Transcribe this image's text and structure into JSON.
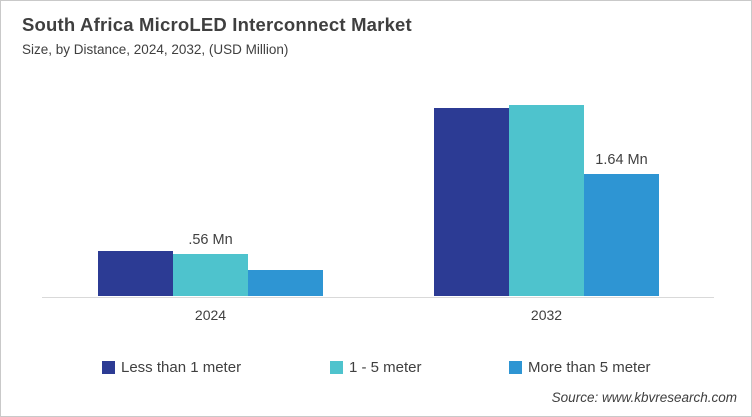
{
  "header": {
    "title": "South Africa MicroLED Interconnect Market",
    "subtitle": "Size, by Distance, 2024, 2032, (USD Million)"
  },
  "source": "Source: www.kbvresearch.com",
  "colors": {
    "less_than_1_meter": "#2c3b94",
    "one_to_5_meter": "#4ec3cd",
    "more_than_5_meter": "#2e95d3",
    "axis_line": "#d9d9d9",
    "text": "#3f3f3f"
  },
  "chart_data": {
    "type": "bar",
    "categories": [
      "2024",
      "2032"
    ],
    "series": [
      {
        "name": "Less than 1 meter",
        "color": "#2c3b94",
        "values": [
          0.6,
          2.52
        ]
      },
      {
        "name": "1 - 5 meter",
        "color": "#4ec3cd",
        "values": [
          0.56,
          2.56
        ]
      },
      {
        "name": "More than 5 meter",
        "color": "#2e95d3",
        "values": [
          0.35,
          1.64
        ]
      }
    ],
    "unit": "Mn",
    "data_labels": [
      {
        "category": "2024",
        "series": "1 - 5 meter",
        "text": ".56 Mn"
      },
      {
        "category": "2032",
        "series": "More than 5 meter",
        "text": "1.64 Mn"
      }
    ],
    "ylim": [
      0,
      2.8
    ],
    "xlabel": "",
    "ylabel": "",
    "grid": false,
    "y_axis_visible": false,
    "legend_position": "bottom"
  },
  "legend": {
    "items": [
      {
        "label": "Less than 1 meter",
        "color": "#2c3b94"
      },
      {
        "label": "1 - 5 meter",
        "color": "#4ec3cd"
      },
      {
        "label": "More than 5 meter",
        "color": "#2e95d3"
      }
    ]
  }
}
